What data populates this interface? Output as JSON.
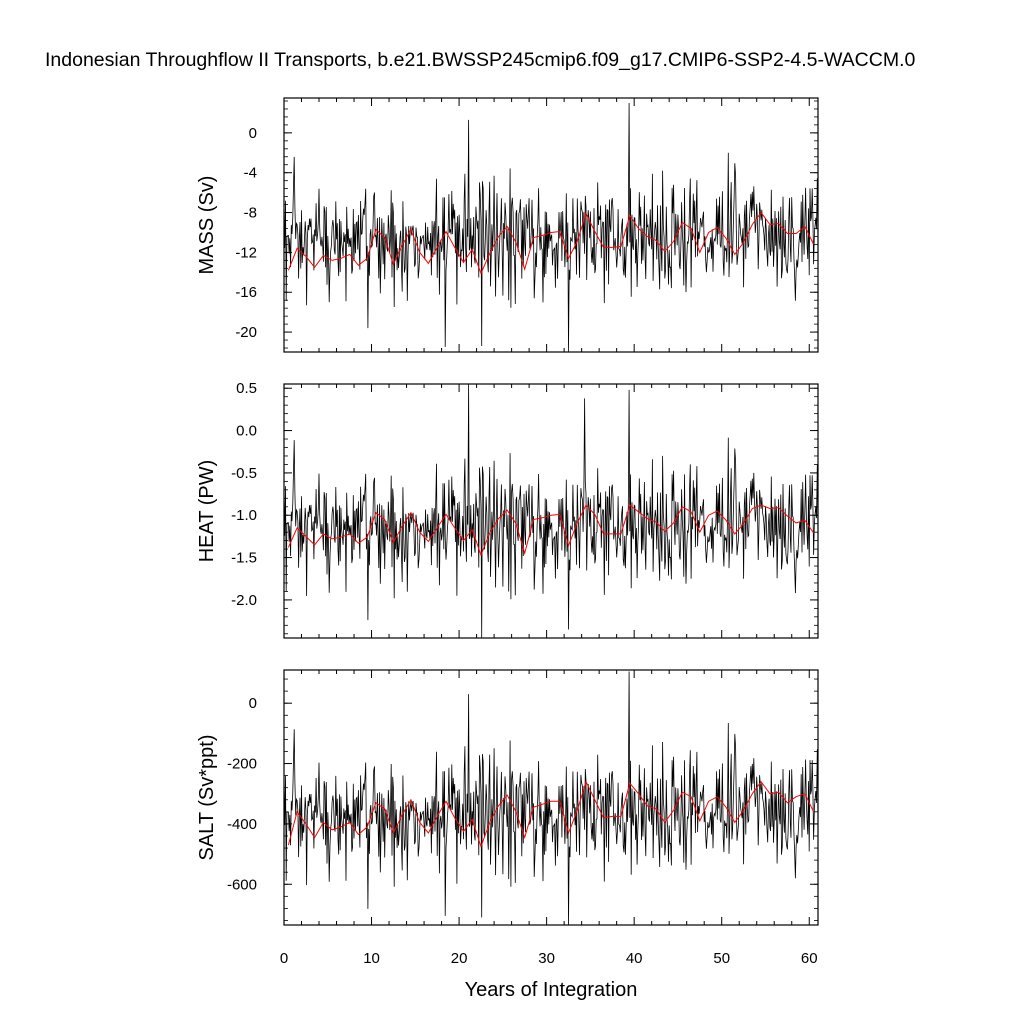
{
  "figure": {
    "title": "Indonesian Throughflow II Transports, b.e21.BWSSP245cmip6.f09_g17.CMIP6-SSP2-4.5-WACCM.0",
    "xlabel": "Years of Integration"
  },
  "chart_data": [
    {
      "type": "line",
      "ylabel": "MASS (Sv)",
      "xlim": [
        0,
        61
      ],
      "ylim": [
        -22,
        3.5
      ],
      "xticks": [
        0,
        10,
        20,
        30,
        40,
        50,
        60
      ],
      "yticks": [
        0,
        -4,
        -8,
        -12,
        -16,
        -20
      ],
      "ytick_labels": [
        "0",
        "-4",
        "-8",
        "-12",
        "-16",
        "-20"
      ],
      "monthly": {
        "base": -11.3,
        "amp": 3.4,
        "trend": 1.5,
        "shocks": [
          [
            21.1,
            1.3
          ],
          [
            22.6,
            -21.4
          ],
          [
            32.5,
            -22.0
          ],
          [
            39.4,
            3.0
          ],
          [
            18.4,
            -21.5
          ]
        ]
      },
      "annual": {
        "x": [
          0.5,
          1.5,
          2.5,
          3.5,
          4.5,
          5.5,
          6.5,
          7.5,
          8.5,
          9.5,
          10.5,
          11.5,
          12.5,
          13.5,
          14.5,
          15.5,
          16.5,
          17.5,
          18.5,
          19.5,
          20.5,
          21.5,
          22.5,
          23.5,
          24.5,
          25.5,
          26.5,
          27.5,
          28.5,
          29.5,
          30.5,
          31.5,
          32.5,
          33.5,
          34.5,
          35.5,
          36.5,
          37.5,
          38.5,
          39.5,
          40.5,
          41.5,
          42.5,
          43.5,
          44.5,
          45.5,
          46.5,
          47.5,
          48.5,
          49.5,
          50.5,
          51.5,
          52.5,
          53.5,
          54.5,
          55.5,
          56.5,
          57.5,
          58.5,
          59.5,
          60.5
        ],
        "y": [
          -13.8,
          -11.6,
          -12.4,
          -13.5,
          -12.3,
          -12.8,
          -12.6,
          -12.2,
          -13.3,
          -12.6,
          -9.7,
          -10.5,
          -13.2,
          -11.3,
          -9.7,
          -12.0,
          -13.1,
          -11.5,
          -9.9,
          -11.5,
          -13.0,
          -11.7,
          -14.1,
          -12.1,
          -10.4,
          -9.4,
          -11.0,
          -13.7,
          -10.5,
          -10.3,
          -10.0,
          -9.9,
          -12.6,
          -10.9,
          -8.1,
          -9.9,
          -11.5,
          -11.5,
          -11.4,
          -8.3,
          -9.6,
          -10.4,
          -10.8,
          -11.9,
          -10.9,
          -9.0,
          -9.6,
          -12.0,
          -10.0,
          -9.5,
          -10.6,
          -12.2,
          -11.0,
          -9.2,
          -8.0,
          -9.2,
          -9.1,
          -10.1,
          -10.1,
          -9.4,
          -11.2
        ]
      }
    },
    {
      "type": "line",
      "ylabel": "HEAT (PW)",
      "xlim": [
        0,
        61
      ],
      "ylim": [
        -2.45,
        0.55
      ],
      "xticks": [
        0,
        10,
        20,
        30,
        40,
        50,
        60
      ],
      "yticks": [
        0.5,
        0.0,
        -0.5,
        -1.0,
        -1.5,
        -2.0
      ],
      "ytick_labels": [
        "0.5",
        "0.0",
        "-0.5",
        "-1.0",
        "-1.5",
        "-2.0"
      ],
      "monthly": {
        "base": -1.21,
        "amp": 0.42,
        "trend": 0.16,
        "shocks": [
          [
            21.1,
            0.55
          ],
          [
            22.6,
            -2.45
          ],
          [
            32.5,
            -2.35
          ],
          [
            39.4,
            0.48
          ],
          [
            34.3,
            0.38
          ]
        ]
      },
      "annual": {
        "x": [
          0.5,
          1.5,
          2.5,
          3.5,
          4.5,
          5.5,
          6.5,
          7.5,
          8.5,
          9.5,
          10.5,
          11.5,
          12.5,
          13.5,
          14.5,
          15.5,
          16.5,
          17.5,
          18.5,
          19.5,
          20.5,
          21.5,
          22.5,
          23.5,
          24.5,
          25.5,
          26.5,
          27.5,
          28.5,
          29.5,
          30.5,
          31.5,
          32.5,
          33.5,
          34.5,
          35.5,
          36.5,
          37.5,
          38.5,
          39.5,
          40.5,
          41.5,
          42.5,
          43.5,
          44.5,
          45.5,
          46.5,
          47.5,
          48.5,
          49.5,
          50.5,
          51.5,
          52.5,
          53.5,
          54.5,
          55.5,
          56.5,
          57.5,
          58.5,
          59.5,
          60.5
        ],
        "y": [
          -1.38,
          -1.15,
          -1.25,
          -1.35,
          -1.22,
          -1.28,
          -1.26,
          -1.22,
          -1.33,
          -1.26,
          -0.97,
          -1.05,
          -1.32,
          -1.13,
          -0.97,
          -1.2,
          -1.31,
          -1.15,
          -0.99,
          -1.15,
          -1.3,
          -1.17,
          -1.47,
          -1.21,
          -1.04,
          -0.94,
          -1.1,
          -1.45,
          -1.05,
          -1.03,
          -1.0,
          -0.99,
          -1.36,
          -1.09,
          -0.88,
          -0.99,
          -1.22,
          -1.22,
          -1.22,
          -0.88,
          -0.96,
          -1.04,
          -1.08,
          -1.19,
          -1.09,
          -0.9,
          -0.96,
          -1.2,
          -1.0,
          -0.95,
          -1.06,
          -1.22,
          -1.1,
          -0.92,
          -0.88,
          -0.92,
          -0.91,
          -1.01,
          -1.09,
          -1.06,
          -1.21
        ]
      }
    },
    {
      "type": "line",
      "ylabel": "SALT (Sv*ppt)",
      "xlim": [
        0,
        61
      ],
      "ylim": [
        -735,
        110
      ],
      "xticks": [
        0,
        10,
        20,
        30,
        40,
        50,
        60
      ],
      "yticks": [
        0,
        -200,
        -400,
        -600
      ],
      "ytick_labels": [
        "0",
        "-200",
        "-400",
        "-600"
      ],
      "monthly": {
        "base": -395,
        "amp": 118,
        "trend": 60,
        "shocks": [
          [
            21.1,
            30
          ],
          [
            22.6,
            -710
          ],
          [
            32.5,
            -735
          ],
          [
            39.4,
            105
          ],
          [
            18.4,
            -705
          ]
        ]
      },
      "annual": {
        "x": [
          0.5,
          1.5,
          2.5,
          3.5,
          4.5,
          5.5,
          6.5,
          7.5,
          8.5,
          9.5,
          10.5,
          11.5,
          12.5,
          13.5,
          14.5,
          15.5,
          16.5,
          17.5,
          18.5,
          19.5,
          20.5,
          21.5,
          22.5,
          23.5,
          24.5,
          25.5,
          26.5,
          27.5,
          28.5,
          29.5,
          30.5,
          31.5,
          32.5,
          33.5,
          34.5,
          35.5,
          36.5,
          37.5,
          38.5,
          39.5,
          40.5,
          41.5,
          42.5,
          43.5,
          44.5,
          45.5,
          46.5,
          47.5,
          48.5,
          49.5,
          50.5,
          51.5,
          52.5,
          53.5,
          54.5,
          55.5,
          56.5,
          57.5,
          58.5,
          59.5,
          60.5
        ],
        "y": [
          -470,
          -360,
          -400,
          -445,
          -395,
          -420,
          -410,
          -395,
          -435,
          -410,
          -330,
          -350,
          -430,
          -370,
          -320,
          -395,
          -430,
          -375,
          -325,
          -380,
          -425,
          -385,
          -475,
          -395,
          -340,
          -305,
          -360,
          -445,
          -345,
          -335,
          -325,
          -325,
          -430,
          -355,
          -260,
          -320,
          -380,
          -375,
          -375,
          -265,
          -300,
          -340,
          -350,
          -395,
          -355,
          -295,
          -310,
          -390,
          -325,
          -310,
          -345,
          -395,
          -355,
          -300,
          -260,
          -300,
          -295,
          -330,
          -310,
          -300,
          -360
        ]
      }
    }
  ],
  "colors": {
    "monthly_line": "#000000",
    "annual_line": "#ff0000",
    "frame": "#000000"
  }
}
